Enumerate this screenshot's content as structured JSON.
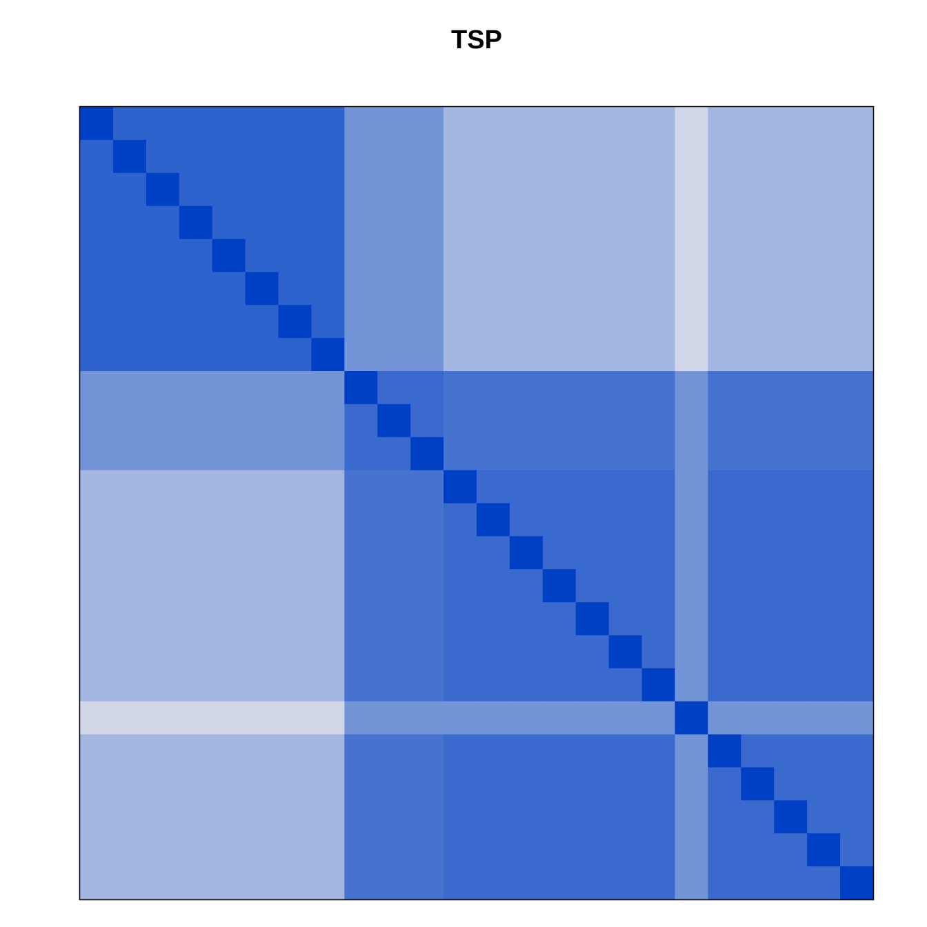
{
  "chart_data": {
    "type": "heatmap",
    "title": "TSP",
    "colorscale": [
      "#0040c4",
      "#e8e8ec"
    ],
    "zlim": [
      0,
      1
    ],
    "matrix": [
      [
        0,
        0.2,
        0.2,
        0.2,
        0.2,
        0.2,
        0.2,
        0.2,
        0.5,
        0.5,
        0.5,
        0.7,
        0.7,
        0.7,
        0.7,
        0.7,
        0.7,
        0.7,
        0.9,
        0.7,
        0.7,
        0.7,
        0.7,
        0.7
      ],
      [
        0.2,
        0,
        0.2,
        0.2,
        0.2,
        0.2,
        0.2,
        0.2,
        0.5,
        0.5,
        0.5,
        0.7,
        0.7,
        0.7,
        0.7,
        0.7,
        0.7,
        0.7,
        0.9,
        0.7,
        0.7,
        0.7,
        0.7,
        0.7
      ],
      [
        0.2,
        0.2,
        0,
        0.2,
        0.2,
        0.2,
        0.2,
        0.2,
        0.5,
        0.5,
        0.5,
        0.7,
        0.7,
        0.7,
        0.7,
        0.7,
        0.7,
        0.7,
        0.9,
        0.7,
        0.7,
        0.7,
        0.7,
        0.7
      ],
      [
        0.2,
        0.2,
        0.2,
        0,
        0.2,
        0.2,
        0.2,
        0.2,
        0.5,
        0.5,
        0.5,
        0.7,
        0.7,
        0.7,
        0.7,
        0.7,
        0.7,
        0.7,
        0.9,
        0.7,
        0.7,
        0.7,
        0.7,
        0.7
      ],
      [
        0.2,
        0.2,
        0.2,
        0.2,
        0,
        0.2,
        0.2,
        0.2,
        0.5,
        0.5,
        0.5,
        0.7,
        0.7,
        0.7,
        0.7,
        0.7,
        0.7,
        0.7,
        0.9,
        0.7,
        0.7,
        0.7,
        0.7,
        0.7
      ],
      [
        0.2,
        0.2,
        0.2,
        0.2,
        0.2,
        0,
        0.2,
        0.2,
        0.5,
        0.5,
        0.5,
        0.7,
        0.7,
        0.7,
        0.7,
        0.7,
        0.7,
        0.7,
        0.9,
        0.7,
        0.7,
        0.7,
        0.7,
        0.7
      ],
      [
        0.2,
        0.2,
        0.2,
        0.2,
        0.2,
        0.2,
        0,
        0.2,
        0.5,
        0.5,
        0.5,
        0.7,
        0.7,
        0.7,
        0.7,
        0.7,
        0.7,
        0.7,
        0.9,
        0.7,
        0.7,
        0.7,
        0.7,
        0.7
      ],
      [
        0.2,
        0.2,
        0.2,
        0.2,
        0.2,
        0.2,
        0.2,
        0,
        0.5,
        0.5,
        0.5,
        0.7,
        0.7,
        0.7,
        0.7,
        0.7,
        0.7,
        0.7,
        0.9,
        0.7,
        0.7,
        0.7,
        0.7,
        0.7
      ],
      [
        0.5,
        0.5,
        0.5,
        0.5,
        0.5,
        0.5,
        0.5,
        0.5,
        0,
        0.25,
        0.25,
        0.3,
        0.3,
        0.3,
        0.3,
        0.3,
        0.3,
        0.3,
        0.5,
        0.3,
        0.3,
        0.3,
        0.3,
        0.3
      ],
      [
        0.5,
        0.5,
        0.5,
        0.5,
        0.5,
        0.5,
        0.5,
        0.5,
        0.25,
        0,
        0.25,
        0.3,
        0.3,
        0.3,
        0.3,
        0.3,
        0.3,
        0.3,
        0.5,
        0.3,
        0.3,
        0.3,
        0.3,
        0.3
      ],
      [
        0.5,
        0.5,
        0.5,
        0.5,
        0.5,
        0.5,
        0.5,
        0.5,
        0.25,
        0.25,
        0,
        0.3,
        0.3,
        0.3,
        0.3,
        0.3,
        0.3,
        0.3,
        0.5,
        0.3,
        0.3,
        0.3,
        0.3,
        0.3
      ],
      [
        0.7,
        0.7,
        0.7,
        0.7,
        0.7,
        0.7,
        0.7,
        0.7,
        0.3,
        0.3,
        0.3,
        0,
        0.25,
        0.25,
        0.25,
        0.25,
        0.25,
        0.25,
        0.5,
        0.25,
        0.25,
        0.25,
        0.25,
        0.25
      ],
      [
        0.7,
        0.7,
        0.7,
        0.7,
        0.7,
        0.7,
        0.7,
        0.7,
        0.3,
        0.3,
        0.3,
        0.25,
        0,
        0.25,
        0.25,
        0.25,
        0.25,
        0.25,
        0.5,
        0.25,
        0.25,
        0.25,
        0.25,
        0.25
      ],
      [
        0.7,
        0.7,
        0.7,
        0.7,
        0.7,
        0.7,
        0.7,
        0.7,
        0.3,
        0.3,
        0.3,
        0.25,
        0.25,
        0,
        0.25,
        0.25,
        0.25,
        0.25,
        0.5,
        0.25,
        0.25,
        0.25,
        0.25,
        0.25
      ],
      [
        0.7,
        0.7,
        0.7,
        0.7,
        0.7,
        0.7,
        0.7,
        0.7,
        0.3,
        0.3,
        0.3,
        0.25,
        0.25,
        0.25,
        0,
        0.25,
        0.25,
        0.25,
        0.5,
        0.25,
        0.25,
        0.25,
        0.25,
        0.25
      ],
      [
        0.7,
        0.7,
        0.7,
        0.7,
        0.7,
        0.7,
        0.7,
        0.7,
        0.3,
        0.3,
        0.3,
        0.25,
        0.25,
        0.25,
        0.25,
        0,
        0.25,
        0.25,
        0.5,
        0.25,
        0.25,
        0.25,
        0.25,
        0.25
      ],
      [
        0.7,
        0.7,
        0.7,
        0.7,
        0.7,
        0.7,
        0.7,
        0.7,
        0.3,
        0.3,
        0.3,
        0.25,
        0.25,
        0.25,
        0.25,
        0.25,
        0,
        0.25,
        0.5,
        0.25,
        0.25,
        0.25,
        0.25,
        0.25
      ],
      [
        0.7,
        0.7,
        0.7,
        0.7,
        0.7,
        0.7,
        0.7,
        0.7,
        0.3,
        0.3,
        0.3,
        0.25,
        0.25,
        0.25,
        0.25,
        0.25,
        0.25,
        0,
        0.5,
        0.25,
        0.25,
        0.25,
        0.25,
        0.25
      ],
      [
        0.9,
        0.9,
        0.9,
        0.9,
        0.9,
        0.9,
        0.9,
        0.9,
        0.5,
        0.5,
        0.5,
        0.5,
        0.5,
        0.5,
        0.5,
        0.5,
        0.5,
        0.5,
        0,
        0.5,
        0.5,
        0.5,
        0.5,
        0.5
      ],
      [
        0.7,
        0.7,
        0.7,
        0.7,
        0.7,
        0.7,
        0.7,
        0.7,
        0.3,
        0.3,
        0.3,
        0.25,
        0.25,
        0.25,
        0.25,
        0.25,
        0.25,
        0.25,
        0.5,
        0,
        0.25,
        0.25,
        0.25,
        0.25
      ],
      [
        0.7,
        0.7,
        0.7,
        0.7,
        0.7,
        0.7,
        0.7,
        0.7,
        0.3,
        0.3,
        0.3,
        0.25,
        0.25,
        0.25,
        0.25,
        0.25,
        0.25,
        0.25,
        0.5,
        0.25,
        0,
        0.25,
        0.25,
        0.25
      ],
      [
        0.7,
        0.7,
        0.7,
        0.7,
        0.7,
        0.7,
        0.7,
        0.7,
        0.3,
        0.3,
        0.3,
        0.25,
        0.25,
        0.25,
        0.25,
        0.25,
        0.25,
        0.25,
        0.5,
        0.25,
        0.25,
        0,
        0.25,
        0.25
      ],
      [
        0.7,
        0.7,
        0.7,
        0.7,
        0.7,
        0.7,
        0.7,
        0.7,
        0.3,
        0.3,
        0.3,
        0.25,
        0.25,
        0.25,
        0.25,
        0.25,
        0.25,
        0.25,
        0.5,
        0.25,
        0.25,
        0.25,
        0,
        0.25
      ],
      [
        0.7,
        0.7,
        0.7,
        0.7,
        0.7,
        0.7,
        0.7,
        0.7,
        0.3,
        0.3,
        0.3,
        0.25,
        0.25,
        0.25,
        0.25,
        0.25,
        0.25,
        0.25,
        0.5,
        0.25,
        0.25,
        0.25,
        0.25,
        0
      ]
    ]
  }
}
